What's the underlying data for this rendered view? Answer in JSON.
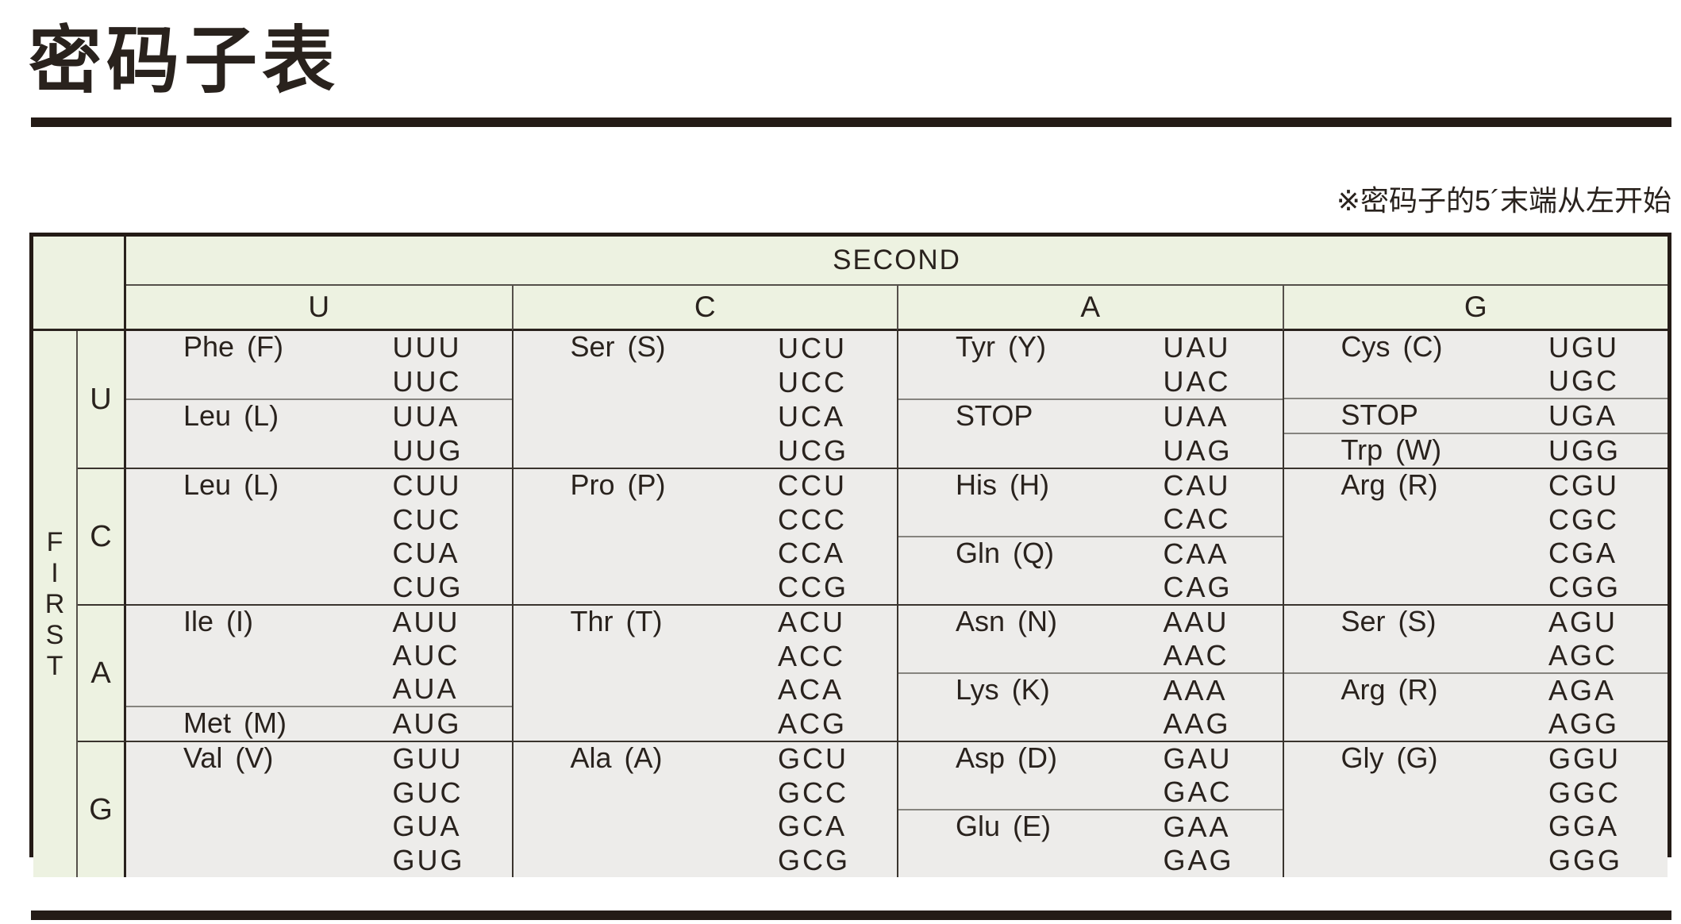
{
  "page": {
    "title": "密码子表",
    "note": "※密码子的5´末端从左开始"
  },
  "colors": {
    "header_green": "#edf2e1",
    "cell_gray": "#edecea",
    "heavy_rule": "#241b16",
    "major_line": "#3a342e",
    "sub_divider": "#86847f",
    "text": "#29221d"
  },
  "table": {
    "col_axis_label": "SECOND",
    "row_axis_label": "FIRST",
    "second_bases": [
      "U",
      "C",
      "A",
      "G"
    ],
    "first_bases": [
      "U",
      "C",
      "A",
      "G"
    ],
    "cells": [
      [
        {
          "groups": [
            {
              "name": "Phe (F)",
              "codons": [
                "UUU",
                "UUC"
              ]
            },
            {
              "name": "Leu (L)",
              "codons": [
                "UUA",
                "UUG"
              ]
            }
          ]
        },
        {
          "groups": [
            {
              "name": "Ser (S)",
              "codons": [
                "UCU",
                "UCC",
                "UCA",
                "UCG"
              ]
            }
          ]
        },
        {
          "groups": [
            {
              "name": "Tyr (Y)",
              "codons": [
                "UAU",
                "UAC"
              ]
            },
            {
              "name": "STOP",
              "codons": [
                "UAA",
                "UAG"
              ]
            }
          ]
        },
        {
          "groups": [
            {
              "name": "Cys (C)",
              "codons": [
                "UGU",
                "UGC"
              ]
            },
            {
              "name": "STOP",
              "codons": [
                "UGA"
              ]
            },
            {
              "name": "Trp (W)",
              "codons": [
                "UGG"
              ]
            }
          ]
        }
      ],
      [
        {
          "groups": [
            {
              "name": "Leu (L)",
              "codons": [
                "CUU",
                "CUC",
                "CUA",
                "CUG"
              ]
            }
          ]
        },
        {
          "groups": [
            {
              "name": "Pro (P)",
              "codons": [
                "CCU",
                "CCC",
                "CCA",
                "CCG"
              ]
            }
          ]
        },
        {
          "groups": [
            {
              "name": "His (H)",
              "codons": [
                "CAU",
                "CAC"
              ]
            },
            {
              "name": "Gln (Q)",
              "codons": [
                "CAA",
                "CAG"
              ]
            }
          ]
        },
        {
          "groups": [
            {
              "name": "Arg (R)",
              "codons": [
                "CGU",
                "CGC",
                "CGA",
                "CGG"
              ]
            }
          ]
        }
      ],
      [
        {
          "groups": [
            {
              "name": "Ile (I)",
              "codons": [
                "AUU",
                "AUC",
                "AUA"
              ]
            },
            {
              "name": "Met (M)",
              "codons": [
                "AUG"
              ]
            }
          ]
        },
        {
          "groups": [
            {
              "name": "Thr (T)",
              "codons": [
                "ACU",
                "ACC",
                "ACA",
                "ACG"
              ]
            }
          ]
        },
        {
          "groups": [
            {
              "name": "Asn (N)",
              "codons": [
                "AAU",
                "AAC"
              ]
            },
            {
              "name": "Lys (K)",
              "codons": [
                "AAA",
                "AAG"
              ]
            }
          ]
        },
        {
          "groups": [
            {
              "name": "Ser (S)",
              "codons": [
                "AGU",
                "AGC"
              ]
            },
            {
              "name": "Arg (R)",
              "codons": [
                "AGA",
                "AGG"
              ]
            }
          ]
        }
      ],
      [
        {
          "groups": [
            {
              "name": "Val (V)",
              "codons": [
                "GUU",
                "GUC",
                "GUA",
                "GUG"
              ]
            }
          ]
        },
        {
          "groups": [
            {
              "name": "Ala (A)",
              "codons": [
                "GCU",
                "GCC",
                "GCA",
                "GCG"
              ]
            }
          ]
        },
        {
          "groups": [
            {
              "name": "Asp (D)",
              "codons": [
                "GAU",
                "GAC"
              ]
            },
            {
              "name": "Glu (E)",
              "codons": [
                "GAA",
                "GAG"
              ]
            }
          ]
        },
        {
          "groups": [
            {
              "name": "Gly (G)",
              "codons": [
                "GGU",
                "GGC",
                "GGA",
                "GGG"
              ]
            }
          ]
        }
      ]
    ]
  }
}
